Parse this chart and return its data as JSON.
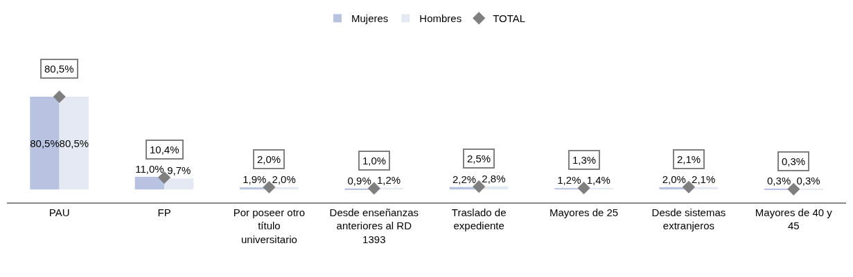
{
  "chart_data": {
    "type": "bar",
    "categories": [
      "PAU",
      "FP",
      "Por poseer otro título universitario",
      "Desde enseñanzas anteriores al RD 1393",
      "Traslado de expediente",
      "Mayores de 25",
      "Desde sistemas extranjeros",
      "Mayores de 40 y 45"
    ],
    "series": [
      {
        "name": "Mujeres",
        "color": "#b7c3e0",
        "values": [
          80.5,
          11.0,
          1.9,
          0.9,
          2.2,
          1.2,
          2.0,
          0.3
        ],
        "value_labels": [
          "80,5%",
          "11,0%",
          "1,9%",
          "0,9%",
          "2,2%",
          "1,2%",
          "2,0%",
          "0,3%"
        ]
      },
      {
        "name": "Hombres",
        "color": "#e4e9f4",
        "values": [
          80.5,
          9.7,
          2.0,
          1.2,
          2.8,
          1.4,
          2.1,
          0.3
        ],
        "value_labels": [
          "80,5%",
          "9,7%",
          "2,0%",
          "1,2%",
          "2,8%",
          "1,4%",
          "2,1%",
          "0,3%"
        ]
      },
      {
        "name": "TOTAL",
        "type": "scatter",
        "color": "#7f7f7f",
        "marker": "diamond",
        "values": [
          80.5,
          10.4,
          2.0,
          1.0,
          2.5,
          1.3,
          2.1,
          0.3
        ],
        "value_labels": [
          "80,5%",
          "10,4%",
          "2,0%",
          "1,0%",
          "2,5%",
          "1,3%",
          "2,1%",
          "0,3%"
        ]
      }
    ],
    "tick_labels": "x",
    "grid": false,
    "legend": "top"
  }
}
